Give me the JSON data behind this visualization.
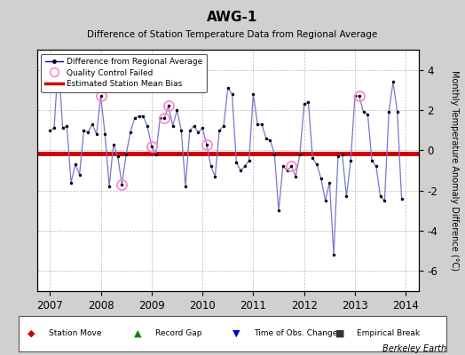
{
  "title": "AWG-1",
  "subtitle": "Difference of Station Temperature Data from Regional Average",
  "ylabel": "Monthly Temperature Anomaly Difference (°C)",
  "credit": "Berkeley Earth",
  "bias": -0.15,
  "ylim": [
    -7,
    5
  ],
  "yticks": [
    -6,
    -4,
    -2,
    0,
    2,
    4
  ],
  "xlim": [
    2006.75,
    2014.25
  ],
  "xticks": [
    2007,
    2008,
    2009,
    2010,
    2011,
    2012,
    2013,
    2014
  ],
  "bg_color": "#d0d0d0",
  "plot_bg": "#ffffff",
  "line_color": "#7777cc",
  "marker_color": "#000000",
  "bias_color": "#cc0000",
  "qc_color": "#ff88cc",
  "times": [
    2007.0,
    2007.083,
    2007.167,
    2007.25,
    2007.333,
    2007.417,
    2007.5,
    2007.583,
    2007.667,
    2007.75,
    2007.833,
    2007.917,
    2008.0,
    2008.083,
    2008.167,
    2008.25,
    2008.333,
    2008.417,
    2008.5,
    2008.583,
    2008.667,
    2008.75,
    2008.833,
    2008.917,
    2009.0,
    2009.083,
    2009.167,
    2009.25,
    2009.333,
    2009.417,
    2009.5,
    2009.583,
    2009.667,
    2009.75,
    2009.833,
    2009.917,
    2010.0,
    2010.083,
    2010.167,
    2010.25,
    2010.333,
    2010.417,
    2010.5,
    2010.583,
    2010.667,
    2010.75,
    2010.833,
    2010.917,
    2011.0,
    2011.083,
    2011.167,
    2011.25,
    2011.333,
    2011.417,
    2011.5,
    2011.583,
    2011.667,
    2011.75,
    2011.833,
    2011.917,
    2012.0,
    2012.083,
    2012.167,
    2012.25,
    2012.333,
    2012.417,
    2012.5,
    2012.583,
    2012.667,
    2012.75,
    2012.833,
    2012.917,
    2013.0,
    2013.083,
    2013.167,
    2013.25,
    2013.333,
    2013.417,
    2013.5,
    2013.583,
    2013.667,
    2013.75,
    2013.833,
    2013.917
  ],
  "values": [
    1.0,
    1.1,
    4.5,
    1.1,
    1.2,
    -1.6,
    -0.7,
    -1.2,
    1.0,
    0.9,
    1.3,
    0.8,
    2.7,
    0.8,
    -1.8,
    0.3,
    -0.3,
    -1.7,
    -0.2,
    0.9,
    1.6,
    1.7,
    1.7,
    1.2,
    0.2,
    -0.2,
    1.6,
    1.6,
    2.2,
    1.2,
    2.0,
    1.0,
    -1.8,
    1.0,
    1.2,
    0.9,
    1.1,
    0.3,
    -0.8,
    -1.3,
    1.0,
    1.2,
    3.1,
    2.8,
    -0.6,
    -1.0,
    -0.8,
    -0.5,
    2.8,
    1.3,
    1.3,
    0.6,
    0.5,
    -0.2,
    -3.0,
    -0.8,
    -1.0,
    -0.8,
    -1.3,
    -0.2,
    2.3,
    2.4,
    -0.4,
    -0.7,
    -1.4,
    -2.5,
    -1.6,
    -5.2,
    -0.3,
    -0.2,
    -2.3,
    -0.5,
    2.7,
    2.7,
    1.9,
    1.8,
    -0.5,
    -0.8,
    -2.3,
    -2.5,
    1.9,
    3.4,
    1.9,
    -2.4
  ],
  "qc_failed_indices": [
    2,
    12,
    17,
    24,
    27,
    28,
    37,
    57,
    73
  ],
  "legend_line_color": "#0000cc",
  "bottom_items": [
    {
      "symbol": "◆",
      "color": "#cc0000",
      "label": "Station Move"
    },
    {
      "symbol": "▲",
      "color": "#008800",
      "label": "Record Gap"
    },
    {
      "symbol": "▼",
      "color": "#0000cc",
      "label": "Time of Obs. Change"
    },
    {
      "symbol": "■",
      "color": "#333333",
      "label": "Empirical Break"
    }
  ]
}
